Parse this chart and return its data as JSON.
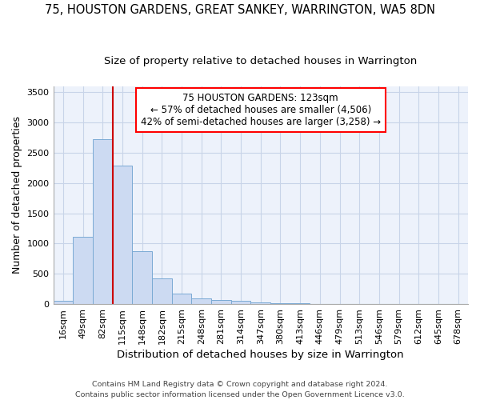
{
  "title": "75, HOUSTON GARDENS, GREAT SANKEY, WARRINGTON, WA5 8DN",
  "subtitle": "Size of property relative to detached houses in Warrington",
  "xlabel": "Distribution of detached houses by size in Warrington",
  "ylabel": "Number of detached properties",
  "bar_color": "#ccdaf2",
  "bar_edge_color": "#7aaad4",
  "categories": [
    "16sqm",
    "49sqm",
    "82sqm",
    "115sqm",
    "148sqm",
    "182sqm",
    "215sqm",
    "248sqm",
    "281sqm",
    "314sqm",
    "347sqm",
    "380sqm",
    "413sqm",
    "446sqm",
    "479sqm",
    "513sqm",
    "546sqm",
    "579sqm",
    "612sqm",
    "645sqm",
    "678sqm"
  ],
  "values": [
    50,
    1110,
    2730,
    2290,
    875,
    430,
    175,
    95,
    65,
    50,
    30,
    20,
    10,
    5,
    3,
    2,
    1,
    1,
    0,
    0,
    0
  ],
  "ylim": [
    0,
    3600
  ],
  "yticks": [
    0,
    500,
    1000,
    1500,
    2000,
    2500,
    3000,
    3500
  ],
  "annotation_line1": "75 HOUSTON GARDENS: 123sqm",
  "annotation_line2": "← 57% of detached houses are smaller (4,506)",
  "annotation_line3": "42% of semi-detached houses are larger (3,258) →",
  "red_line_color": "#cc0000",
  "grid_color": "#c8d4e8",
  "background_color": "#edf2fb",
  "footer1": "Contains HM Land Registry data © Crown copyright and database right 2024.",
  "footer2": "Contains public sector information licensed under the Open Government Licence v3.0.",
  "title_fontsize": 10.5,
  "subtitle_fontsize": 9.5,
  "ylabel_fontsize": 9,
  "xlabel_fontsize": 9.5,
  "tick_fontsize": 8,
  "annot_fontsize": 8.5,
  "footer_fontsize": 6.8
}
